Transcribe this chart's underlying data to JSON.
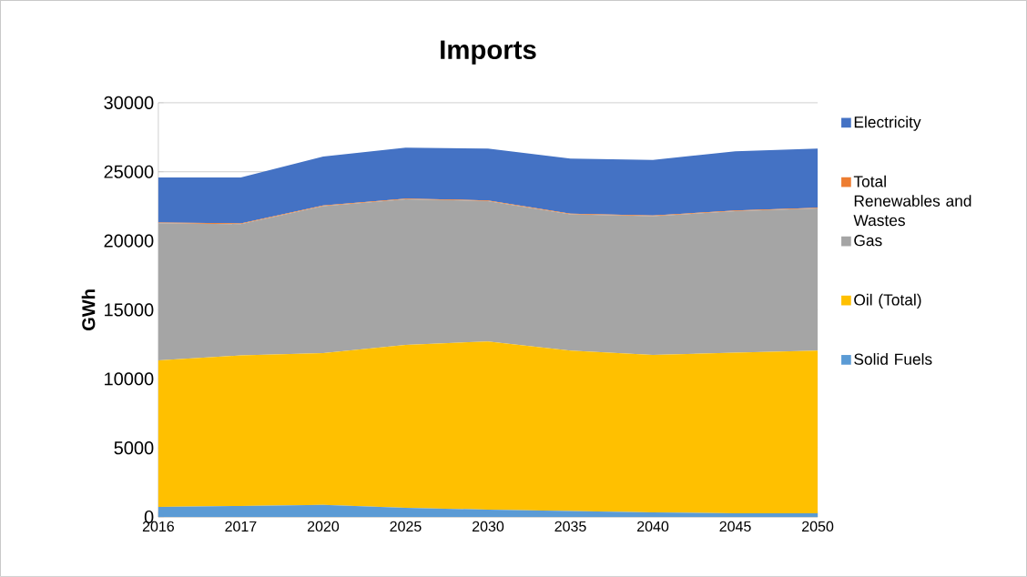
{
  "chart_data": {
    "type": "area",
    "stacked": true,
    "title": "Imports",
    "ylabel": "GWh",
    "categories": [
      "2016",
      "2017",
      "2020",
      "2025",
      "2030",
      "2035",
      "2040",
      "2045",
      "2050"
    ],
    "series": [
      {
        "name": "Solid Fuels",
        "color": "#5b9bd5",
        "values": [
          725,
          790,
          880,
          660,
          530,
          420,
          330,
          265,
          265
        ]
      },
      {
        "name": "Oil (Total)",
        "color": "#ffc000",
        "values": [
          10615,
          10910,
          10990,
          11800,
          12180,
          11630,
          11410,
          11625,
          11785
        ]
      },
      {
        "name": "Gas",
        "color": "#a5a5a5",
        "values": [
          9940,
          9510,
          10640,
          10550,
          10170,
          9860,
          10040,
          10260,
          10300
        ]
      },
      {
        "name": "Total Renewables and Wastes",
        "color": "#ed7d31",
        "values": [
          50,
          50,
          50,
          50,
          50,
          50,
          50,
          50,
          50
        ]
      },
      {
        "name": "Electricity",
        "color": "#4472c4",
        "values": [
          3260,
          3330,
          3550,
          3690,
          3750,
          4000,
          4020,
          4290,
          4280
        ]
      }
    ],
    "ylim": [
      0,
      30000
    ],
    "yticks": [
      0,
      5000,
      10000,
      15000,
      20000,
      25000,
      30000
    ],
    "grid": "y",
    "legend": "right"
  }
}
